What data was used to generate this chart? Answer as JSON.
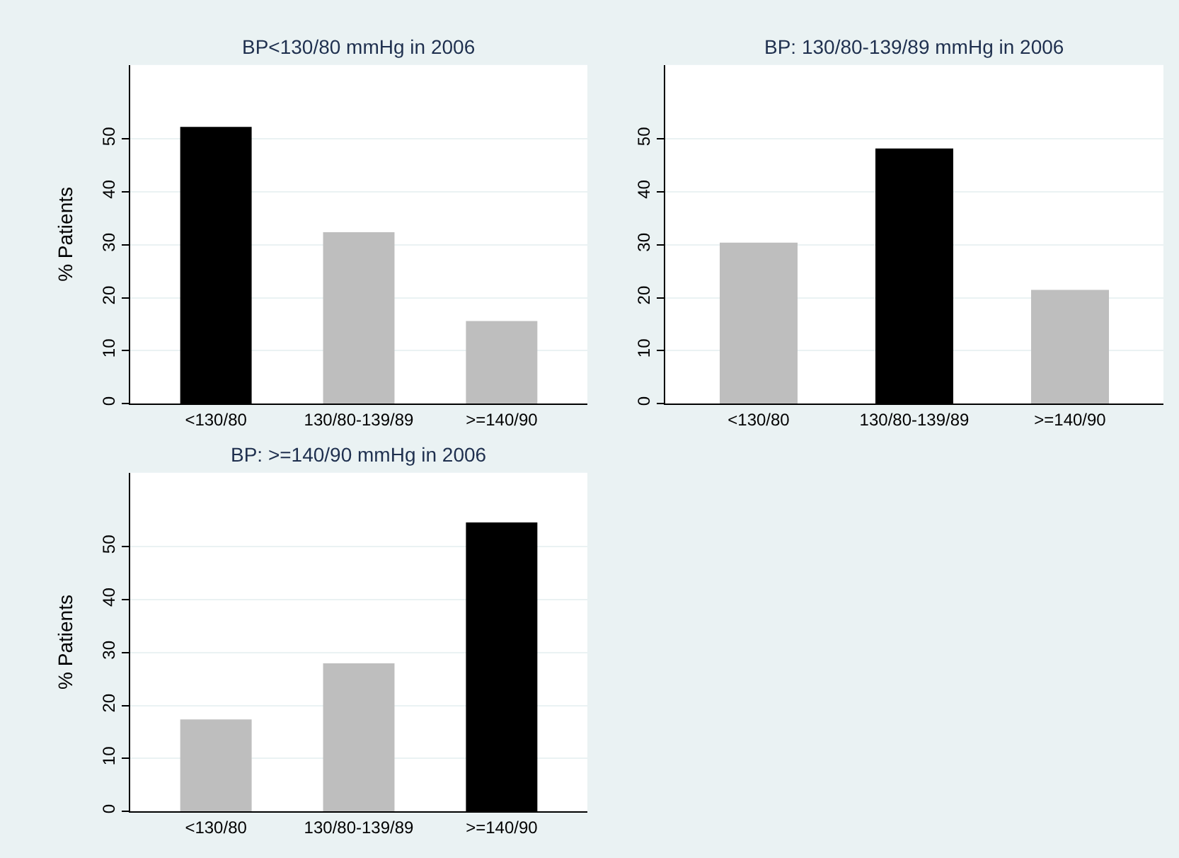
{
  "chart_data": [
    {
      "type": "bar",
      "title": "BP<130/80 mmHg in 2006",
      "ylabel": "% Patients",
      "categories": [
        "<130/80",
        "130/80-139/89",
        ">=140/90"
      ],
      "values": [
        52.3,
        32.4,
        15.6
      ],
      "colors": [
        "#000000",
        "#bebebe",
        "#bebebe"
      ],
      "ylim": [
        0,
        64
      ],
      "yticks": [
        0,
        10,
        20,
        30,
        40,
        50
      ],
      "grid": "y"
    },
    {
      "type": "bar",
      "title": "BP: 130/80-139/89 mmHg in 2006",
      "categories": [
        "<130/80",
        "130/80-139/89",
        ">=140/90"
      ],
      "values": [
        30.4,
        48.2,
        21.5
      ],
      "colors": [
        "#bebebe",
        "#000000",
        "#bebebe"
      ],
      "ylim": [
        0,
        64
      ],
      "yticks": [
        0,
        10,
        20,
        30,
        40,
        50
      ],
      "grid": "y"
    },
    {
      "type": "bar",
      "title": "BP: >=140/90 mmHg in 2006",
      "ylabel": "% Patients",
      "categories": [
        "<130/80",
        "130/80-139/89",
        ">=140/90"
      ],
      "values": [
        17.4,
        28.0,
        54.6
      ],
      "colors": [
        "#bebebe",
        "#bebebe",
        "#000000"
      ],
      "ylim": [
        0,
        64
      ],
      "yticks": [
        0,
        10,
        20,
        30,
        40,
        50
      ],
      "grid": "y"
    }
  ]
}
